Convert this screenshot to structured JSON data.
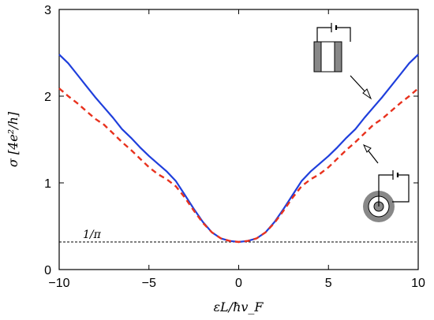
{
  "chart_data": {
    "type": "line",
    "xlabel": "εL/ħv_F",
    "ylabel": "σ [4e²/h]",
    "xlim": [
      -10,
      10
    ],
    "ylim": [
      0,
      3
    ],
    "x_ticks": [
      "−10",
      "−5",
      "0",
      "5",
      "10"
    ],
    "y_ticks": [
      "0",
      "1",
      "2",
      "3"
    ],
    "grid": false,
    "reference_line": {
      "y": 0.318,
      "label": "1/π",
      "style": "dashed",
      "color": "#000000"
    },
    "series": [
      {
        "style": "solid",
        "color": "#1f3fdc",
        "x": [
          0,
          0.5,
          1,
          1.5,
          2,
          2.5,
          3,
          3.5,
          4,
          4.5,
          5,
          5.5,
          6,
          6.5,
          7,
          7.5,
          8,
          8.5,
          9,
          9.5,
          10
        ],
        "y": [
          0.318,
          0.33,
          0.36,
          0.43,
          0.55,
          0.7,
          0.86,
          1.02,
          1.13,
          1.22,
          1.31,
          1.41,
          1.52,
          1.62,
          1.75,
          1.87,
          1.99,
          2.12,
          2.25,
          2.38,
          2.48
        ]
      },
      {
        "style": "dashed",
        "color": "#e8321e",
        "x": [
          0,
          0.5,
          1,
          1.5,
          2,
          2.5,
          3,
          3.5,
          4,
          4.5,
          5,
          5.5,
          6,
          6.5,
          7,
          7.5,
          8,
          8.5,
          9,
          9.5,
          10
        ],
        "y": [
          0.318,
          0.33,
          0.36,
          0.43,
          0.54,
          0.68,
          0.83,
          0.96,
          1.04,
          1.1,
          1.18,
          1.28,
          1.38,
          1.47,
          1.57,
          1.67,
          1.74,
          1.83,
          1.92,
          2.0,
          2.09
        ]
      }
    ]
  },
  "colors": {
    "axis": "#000000",
    "disk_fill": "#888888",
    "disk_rim": "#888888"
  }
}
